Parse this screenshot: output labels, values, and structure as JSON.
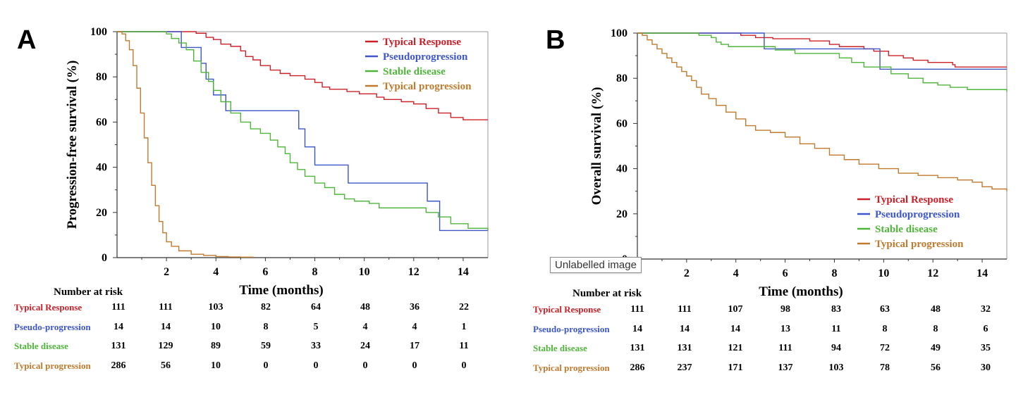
{
  "tooltip": "Unlabelled image",
  "colors": {
    "typical_response": "#cc2029",
    "pseudoprogression": "#3c55c9",
    "stable_disease": "#4fb53a",
    "typical_progression": "#c07a2e"
  },
  "risk_title": "Number at risk",
  "chart_data": [
    {
      "type": "line",
      "panel": "A",
      "title": "",
      "xlabel": "Time (months)",
      "ylabel": "Progression-free survival (%)",
      "xlim": [
        0,
        15
      ],
      "ylim": [
        0,
        100
      ],
      "x_ticks": [
        2,
        4,
        6,
        8,
        10,
        12,
        14
      ],
      "y_ticks": [
        0,
        20,
        40,
        60,
        80,
        100
      ],
      "grid": false,
      "legend_position": "top-right",
      "series": [
        {
          "name": "Typical Response",
          "color_key": "typical_response",
          "points": [
            [
              0,
              100
            ],
            [
              2.5,
              100
            ],
            [
              3.2,
              99.3
            ],
            [
              3.6,
              97.5
            ],
            [
              3.9,
              96.5
            ],
            [
              4.2,
              94.5
            ],
            [
              4.6,
              93.5
            ],
            [
              5.0,
              91.5
            ],
            [
              5.2,
              89
            ],
            [
              5.5,
              87.5
            ],
            [
              5.8,
              85
            ],
            [
              6.2,
              83
            ],
            [
              6.6,
              81.5
            ],
            [
              7.0,
              80.5
            ],
            [
              7.6,
              79
            ],
            [
              8.0,
              77.5
            ],
            [
              8.3,
              75.5
            ],
            [
              8.6,
              74.5
            ],
            [
              9.3,
              73.5
            ],
            [
              9.8,
              72.5
            ],
            [
              10.5,
              71
            ],
            [
              10.8,
              70
            ],
            [
              11.5,
              69
            ],
            [
              12.0,
              68
            ],
            [
              12.5,
              66
            ],
            [
              13.0,
              64
            ],
            [
              13.5,
              62
            ],
            [
              14.0,
              61
            ],
            [
              15,
              61
            ]
          ]
        },
        {
          "name": "Pseudoprogression",
          "color_key": "pseudoprogression",
          "points": [
            [
              0,
              100
            ],
            [
              2.5,
              100
            ],
            [
              2.6,
              93
            ],
            [
              3.3,
              93
            ],
            [
              3.4,
              86
            ],
            [
              3.6,
              79
            ],
            [
              3.9,
              72
            ],
            [
              4.4,
              65
            ],
            [
              7.2,
              65
            ],
            [
              7.35,
              57
            ],
            [
              7.6,
              49
            ],
            [
              8.0,
              41
            ],
            [
              9.3,
              41
            ],
            [
              9.35,
              33
            ],
            [
              12.5,
              33
            ],
            [
              12.55,
              25
            ],
            [
              13.0,
              25
            ],
            [
              13.05,
              12
            ],
            [
              15,
              12
            ]
          ]
        },
        {
          "name": "Stable disease",
          "color_key": "stable_disease",
          "points": [
            [
              0,
              100
            ],
            [
              1.3,
              100
            ],
            [
              2.0,
              99
            ],
            [
              2.2,
              97
            ],
            [
              2.5,
              95
            ],
            [
              2.8,
              92
            ],
            [
              3.1,
              87
            ],
            [
              3.4,
              82
            ],
            [
              3.7,
              78
            ],
            [
              3.9,
              74
            ],
            [
              4.2,
              69
            ],
            [
              4.6,
              64
            ],
            [
              5.0,
              60
            ],
            [
              5.4,
              57
            ],
            [
              5.8,
              55
            ],
            [
              6.2,
              52
            ],
            [
              6.5,
              49
            ],
            [
              6.8,
              46
            ],
            [
              7.0,
              42
            ],
            [
              7.3,
              39
            ],
            [
              7.6,
              36
            ],
            [
              8.0,
              33
            ],
            [
              8.4,
              31
            ],
            [
              8.8,
              28
            ],
            [
              9.2,
              26
            ],
            [
              9.6,
              25
            ],
            [
              10.2,
              24
            ],
            [
              10.6,
              22
            ],
            [
              11.5,
              22
            ],
            [
              12.5,
              20
            ],
            [
              13.0,
              18
            ],
            [
              13.5,
              15
            ],
            [
              14.2,
              13
            ],
            [
              15,
              12
            ]
          ]
        },
        {
          "name": "Typical progression",
          "color_key": "typical_progression",
          "points": [
            [
              0,
              100
            ],
            [
              0.2,
              99
            ],
            [
              0.35,
              96
            ],
            [
              0.5,
              92
            ],
            [
              0.65,
              85
            ],
            [
              0.8,
              75
            ],
            [
              0.95,
              64
            ],
            [
              1.1,
              53
            ],
            [
              1.25,
              42
            ],
            [
              1.4,
              32
            ],
            [
              1.55,
              23
            ],
            [
              1.7,
              16
            ],
            [
              1.85,
              11
            ],
            [
              2.0,
              7
            ],
            [
              2.2,
              5
            ],
            [
              2.5,
              3
            ],
            [
              3.0,
              1.5
            ],
            [
              3.5,
              1
            ],
            [
              4.0,
              0.5
            ],
            [
              4.5,
              0.3
            ],
            [
              5.0,
              0.2
            ],
            [
              5.5,
              0
            ]
          ]
        }
      ]
    },
    {
      "type": "line",
      "panel": "B",
      "title": "",
      "xlabel": "Time (months)",
      "ylabel": "Overall survival (%)",
      "xlim": [
        0,
        15
      ],
      "ylim": [
        0,
        100
      ],
      "x_ticks": [
        2,
        4,
        6,
        8,
        10,
        12,
        14
      ],
      "y_ticks": [
        0,
        20,
        40,
        60,
        80,
        100
      ],
      "grid": false,
      "legend_position": "bottom-right",
      "series": [
        {
          "name": "Typical Response",
          "color_key": "typical_response",
          "points": [
            [
              0,
              100
            ],
            [
              3.9,
              100
            ],
            [
              4.2,
              99
            ],
            [
              4.8,
              98
            ],
            [
              5.5,
              97.5
            ],
            [
              7.0,
              96.5
            ],
            [
              7.8,
              95
            ],
            [
              8.2,
              94
            ],
            [
              9.2,
              93
            ],
            [
              9.6,
              92
            ],
            [
              10.2,
              90
            ],
            [
              10.8,
              89
            ],
            [
              11.2,
              88
            ],
            [
              11.8,
              87
            ],
            [
              12.8,
              86
            ],
            [
              12.9,
              85
            ],
            [
              15,
              85
            ]
          ]
        },
        {
          "name": "Pseudoprogression",
          "color_key": "pseudoprogression",
          "points": [
            [
              0,
              100
            ],
            [
              5.1,
              100
            ],
            [
              5.15,
              93
            ],
            [
              9.8,
              93
            ],
            [
              9.85,
              84
            ],
            [
              15,
              84
            ]
          ]
        },
        {
          "name": "Stable disease",
          "color_key": "stable_disease",
          "points": [
            [
              0,
              100
            ],
            [
              2.2,
              100
            ],
            [
              2.5,
              99
            ],
            [
              3.0,
              98
            ],
            [
              3.2,
              96
            ],
            [
              3.4,
              95
            ],
            [
              3.7,
              94
            ],
            [
              5.2,
              94
            ],
            [
              5.6,
              92.5
            ],
            [
              6.4,
              91
            ],
            [
              7.6,
              91
            ],
            [
              8.2,
              89
            ],
            [
              8.7,
              87
            ],
            [
              9.2,
              85
            ],
            [
              10.0,
              85
            ],
            [
              10.3,
              82
            ],
            [
              11.0,
              80
            ],
            [
              11.6,
              78
            ],
            [
              12.2,
              77
            ],
            [
              12.7,
              76
            ],
            [
              13.4,
              75
            ],
            [
              15,
              74
            ]
          ]
        },
        {
          "name": "Typical progression",
          "color_key": "typical_progression",
          "points": [
            [
              0,
              100
            ],
            [
              0.2,
              99
            ],
            [
              0.4,
              97
            ],
            [
              0.6,
              95
            ],
            [
              0.8,
              93
            ],
            [
              1.0,
              91
            ],
            [
              1.2,
              89
            ],
            [
              1.4,
              87
            ],
            [
              1.6,
              85
            ],
            [
              1.8,
              83
            ],
            [
              2.0,
              81
            ],
            [
              2.2,
              79
            ],
            [
              2.4,
              76
            ],
            [
              2.6,
              73
            ],
            [
              2.9,
              71
            ],
            [
              3.2,
              68
            ],
            [
              3.6,
              65
            ],
            [
              4.0,
              62
            ],
            [
              4.4,
              59
            ],
            [
              4.8,
              57
            ],
            [
              5.4,
              56
            ],
            [
              6.0,
              54
            ],
            [
              6.6,
              51
            ],
            [
              7.2,
              49
            ],
            [
              7.8,
              46
            ],
            [
              8.4,
              44
            ],
            [
              9.0,
              42
            ],
            [
              9.8,
              40
            ],
            [
              10.6,
              38
            ],
            [
              11.4,
              37
            ],
            [
              12.2,
              36
            ],
            [
              13.0,
              35
            ],
            [
              13.6,
              34
            ],
            [
              14.0,
              32
            ],
            [
              14.4,
              31
            ],
            [
              15,
              30
            ]
          ]
        }
      ]
    }
  ],
  "panels": [
    {
      "letter": "A",
      "risk_table": [
        {
          "label": "Typical Response",
          "color_key": "typical_response",
          "values": [
            "111",
            "111",
            "103",
            "82",
            "64",
            "48",
            "36",
            "22"
          ]
        },
        {
          "label": "Pseudo-progression",
          "color_key": "pseudoprogression",
          "values": [
            "14",
            "14",
            "10",
            "8",
            "5",
            "4",
            "4",
            "1"
          ]
        },
        {
          "label": "Stable disease",
          "color_key": "stable_disease",
          "values": [
            "131",
            "129",
            "89",
            "59",
            "33",
            "24",
            "17",
            "11"
          ]
        },
        {
          "label": "Typical progression",
          "color_key": "typical_progression",
          "values": [
            "286",
            "56",
            "10",
            "0",
            "0",
            "0",
            "0",
            "0"
          ]
        }
      ]
    },
    {
      "letter": "B",
      "risk_table": [
        {
          "label": "Typical Response",
          "color_key": "typical_response",
          "values": [
            "111",
            "111",
            "107",
            "98",
            "83",
            "63",
            "48",
            "32"
          ]
        },
        {
          "label": "Pseudo-progression",
          "color_key": "pseudoprogression",
          "values": [
            "14",
            "14",
            "14",
            "13",
            "11",
            "8",
            "8",
            "6"
          ]
        },
        {
          "label": "Stable disease",
          "color_key": "stable_disease",
          "values": [
            "131",
            "131",
            "121",
            "111",
            "94",
            "72",
            "49",
            "35"
          ]
        },
        {
          "label": "Typical progression",
          "color_key": "typical_progression",
          "values": [
            "286",
            "237",
            "171",
            "137",
            "103",
            "78",
            "56",
            "30"
          ]
        }
      ]
    }
  ]
}
